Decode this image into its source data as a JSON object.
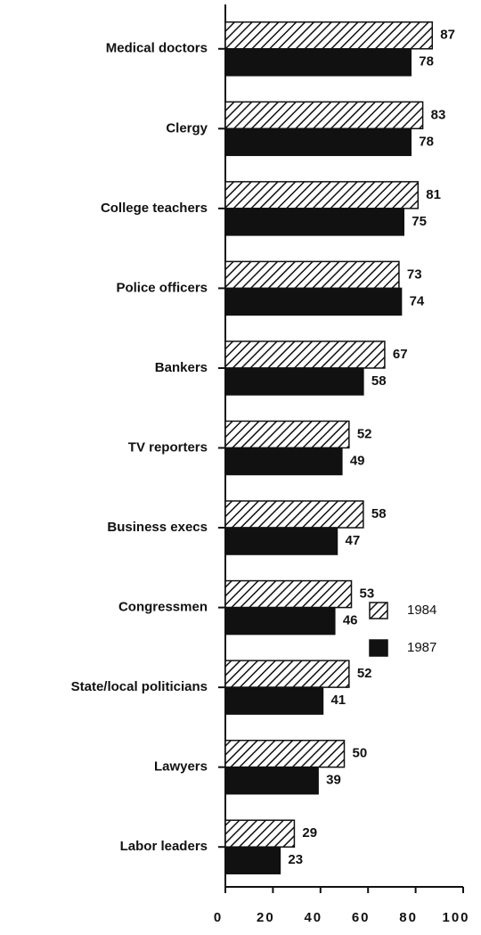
{
  "chart_data": {
    "type": "hbar",
    "categories": [
      "Medical doctors",
      "Clergy",
      "College teachers",
      "Police officers",
      "Bankers",
      "TV reporters",
      "Business execs",
      "Congressmen",
      "State/local politicians",
      "Lawyers",
      "Labor leaders"
    ],
    "series": [
      {
        "name": "1984",
        "color": "#111111",
        "pattern": "hatch",
        "values": [
          87,
          83,
          81,
          73,
          67,
          52,
          58,
          53,
          52,
          50,
          29
        ]
      },
      {
        "name": "1987",
        "color": "#111111",
        "pattern": "solid",
        "values": [
          78,
          78,
          75,
          74,
          58,
          49,
          47,
          46,
          41,
          39,
          23
        ]
      }
    ],
    "xlim": [
      0,
      100
    ],
    "xticks": [
      0,
      20,
      40,
      60,
      80,
      100
    ],
    "legend": "right"
  }
}
